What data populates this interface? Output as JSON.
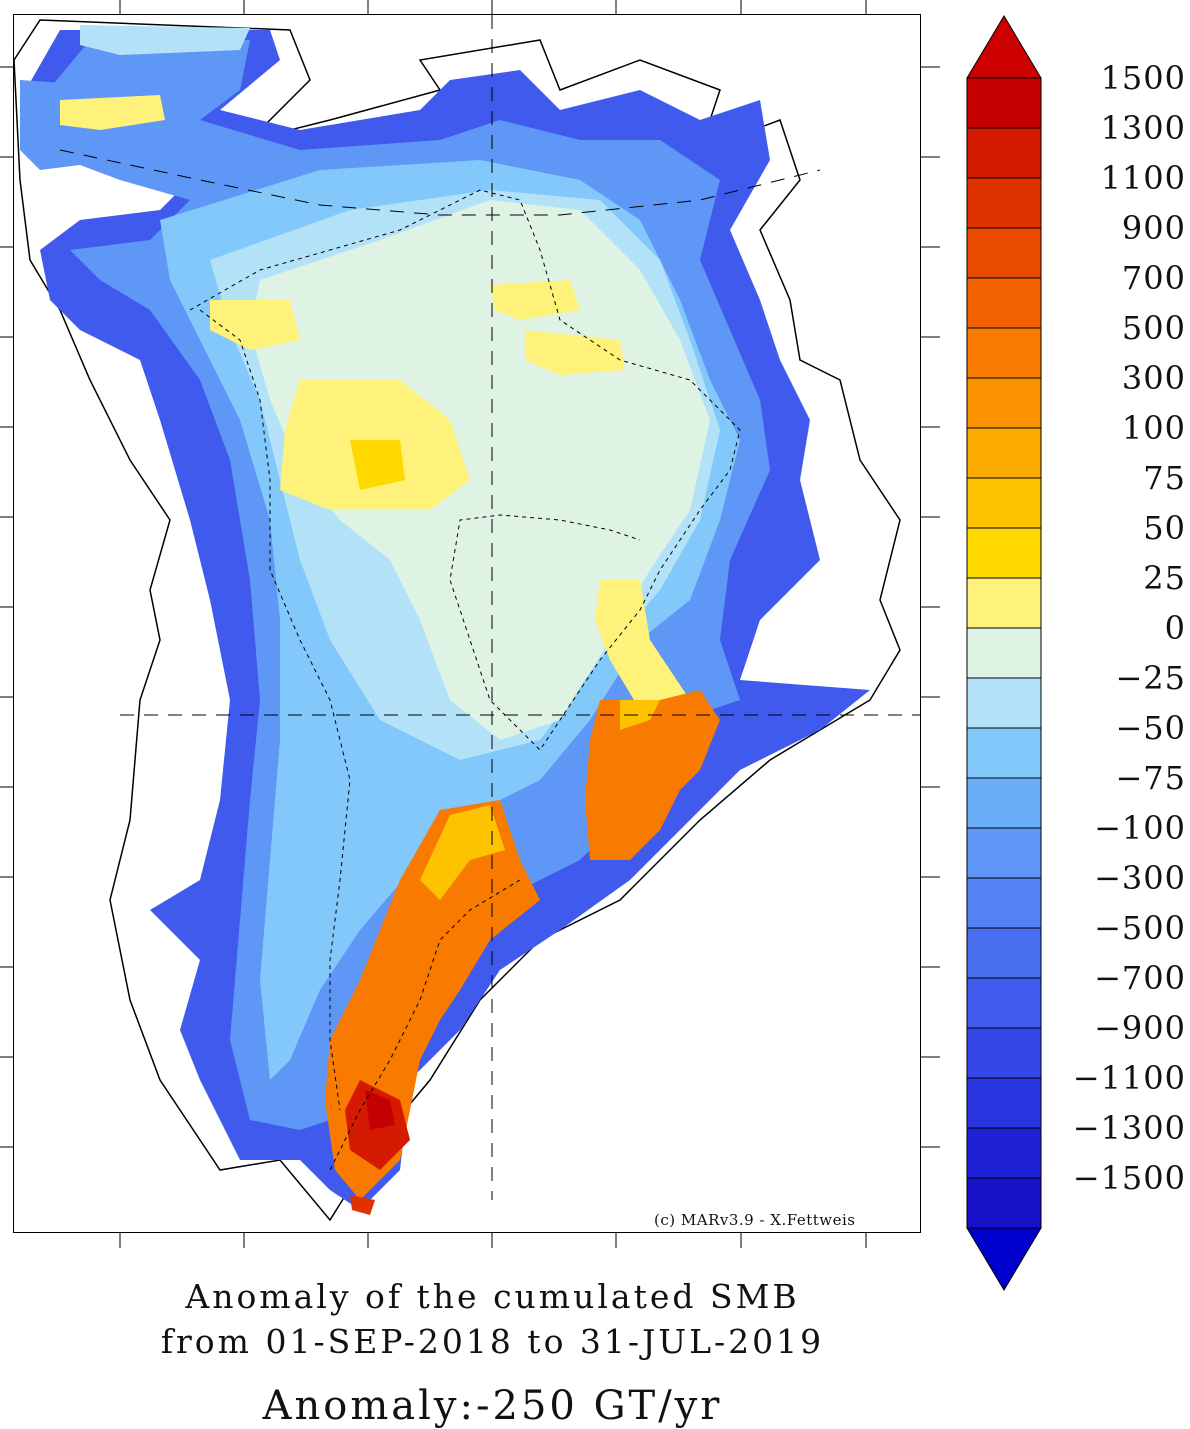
{
  "credit": "(c) MARv3.9 - X.Fettweis",
  "title": {
    "line1": "Anomaly of the cumulated SMB",
    "line2": "from 01-SEP-2018 to 31-JUL-2019",
    "line3": "Anomaly:-250 GT/yr"
  },
  "legend": {
    "labels": [
      "1500",
      "1300",
      "1100",
      "900",
      "700",
      "500",
      "300",
      "100",
      "75",
      "50",
      "25",
      "0",
      "-25",
      "-50",
      "-75",
      "-100",
      "-300",
      "-500",
      "-700",
      "-900",
      "-1100",
      "-1300",
      "-1500"
    ],
    "colors": [
      "#c40000",
      "#d41a00",
      "#e03200",
      "#ea4a00",
      "#f26200",
      "#f87a00",
      "#fb9200",
      "#fdab00",
      "#fec300",
      "#ffd800",
      "#fff27a",
      "#dff3e4",
      "#b3e2f8",
      "#82c8fb",
      "#6aaef8",
      "#5f97f6",
      "#5582f4",
      "#4a6ef0",
      "#3f5aec",
      "#3547e6",
      "#2a34de",
      "#1f22d4",
      "#1712c8"
    ],
    "top_arrow_color": "#cc0000",
    "bottom_arrow_color": "#0000cc"
  }
}
